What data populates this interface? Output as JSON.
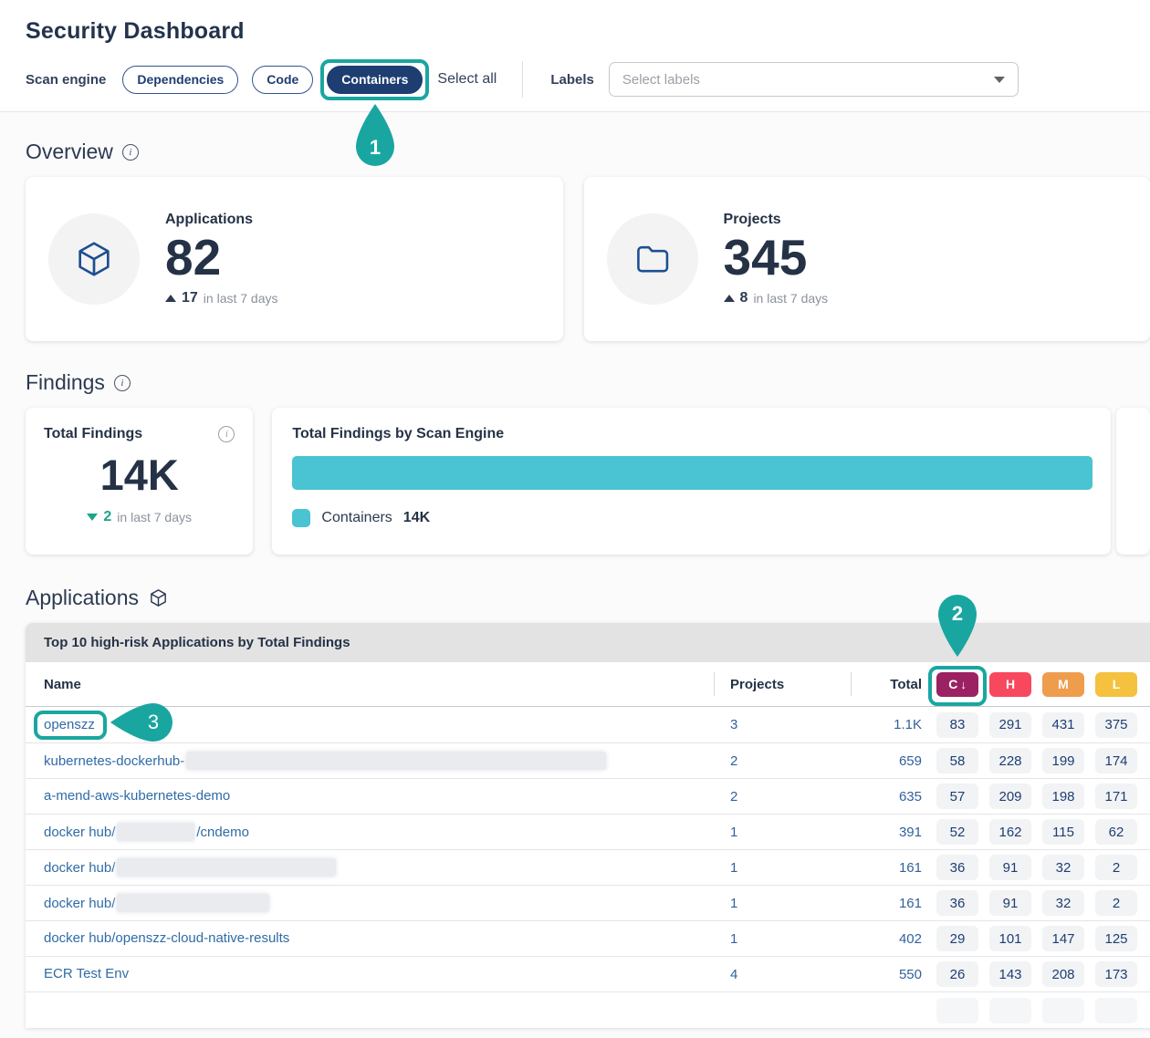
{
  "page": {
    "title": "Security Dashboard"
  },
  "filters": {
    "scan_engine_label": "Scan engine",
    "engines": [
      {
        "label": "Dependencies",
        "selected": false
      },
      {
        "label": "Code",
        "selected": false
      },
      {
        "label": "Containers",
        "selected": true
      }
    ],
    "select_all_label": "Select all",
    "labels_label": "Labels",
    "labels_placeholder": "Select labels"
  },
  "overview": {
    "heading": "Overview",
    "applications_card": {
      "title": "Applications",
      "value": "82",
      "delta": "17",
      "delta_direction": "up",
      "delta_suffix": "in last 7 days"
    },
    "projects_card": {
      "title": "Projects",
      "value": "345",
      "delta": "8",
      "delta_direction": "up",
      "delta_suffix": "in last 7 days"
    }
  },
  "findings": {
    "heading": "Findings",
    "total_card": {
      "title": "Total Findings",
      "value": "14K",
      "delta": "2",
      "delta_direction": "down",
      "delta_suffix": "in last 7 days"
    },
    "by_engine_card": {
      "title": "Total Findings by Scan Engine",
      "legend_label": "Containers",
      "legend_value": "14K"
    }
  },
  "chart_data": {
    "type": "bar",
    "orientation": "horizontal",
    "title": "Total Findings by Scan Engine",
    "categories": [
      "Containers"
    ],
    "values": [
      14000
    ],
    "value_labels": [
      "14K"
    ],
    "bar_color": "#4ac3d2",
    "legend_position": "bottom"
  },
  "applications": {
    "heading": "Applications",
    "table": {
      "title": "Top 10 high-risk Applications by Total Findings",
      "name_header": "Name",
      "projects_header": "Projects",
      "total_header": "Total",
      "severity_headers": [
        {
          "label": "C",
          "sorted": true,
          "sort_arrow": "↓",
          "color": "#9c2162"
        },
        {
          "label": "H",
          "sorted": false,
          "color": "#f8485e"
        },
        {
          "label": "M",
          "sorted": false,
          "color": "#ee9d4d"
        },
        {
          "label": "L",
          "sorted": false,
          "color": "#f4c23e"
        }
      ],
      "rows": [
        {
          "name_segments": [
            {
              "text": "openszz"
            }
          ],
          "annotated": true,
          "projects": "3",
          "total": "1.1K",
          "severities": [
            "83",
            "291",
            "431",
            "375"
          ]
        },
        {
          "name_segments": [
            {
              "text": "kubernetes-dockerhub-"
            },
            {
              "redacted_width": 460
            }
          ],
          "projects": "2",
          "total": "659",
          "severities": [
            "58",
            "228",
            "199",
            "174"
          ]
        },
        {
          "name_segments": [
            {
              "text": "a-mend-aws-kubernetes-demo"
            }
          ],
          "projects": "2",
          "total": "635",
          "severities": [
            "57",
            "209",
            "198",
            "171"
          ]
        },
        {
          "name_segments": [
            {
              "text": "docker hub/"
            },
            {
              "redacted_width": 85
            },
            {
              "text": "/cndemo"
            }
          ],
          "projects": "1",
          "total": "391",
          "severities": [
            "52",
            "162",
            "115",
            "62"
          ]
        },
        {
          "name_segments": [
            {
              "text": "docker hub/"
            },
            {
              "redacted_width": 240
            }
          ],
          "projects": "1",
          "total": "161",
          "severities": [
            "36",
            "91",
            "32",
            "2"
          ]
        },
        {
          "name_segments": [
            {
              "text": "docker hub/"
            },
            {
              "redacted_width": 167
            }
          ],
          "projects": "1",
          "total": "161",
          "severities": [
            "36",
            "91",
            "32",
            "2"
          ]
        },
        {
          "name_segments": [
            {
              "text": "docker hub/openszz-cloud-native-results"
            }
          ],
          "projects": "1",
          "total": "402",
          "severities": [
            "29",
            "101",
            "147",
            "125"
          ]
        },
        {
          "name_segments": [
            {
              "text": "ECR Test Env"
            }
          ],
          "projects": "4",
          "total": "550",
          "severities": [
            "26",
            "143",
            "208",
            "173"
          ]
        },
        {
          "partial": true,
          "name_segments": [],
          "projects": "",
          "total": "",
          "severities": [
            "",
            "",
            "",
            ""
          ]
        }
      ]
    }
  },
  "annotations": {
    "containers_pill": "1",
    "critical_column": "2",
    "openszz_row": "3"
  },
  "colors": {
    "accent_teal": "#19a6a1",
    "navy": "#253246",
    "selected_pill_navy": "#1e3e72",
    "link_blue": "#2f6ba7",
    "bar_teal": "#4ac3d2",
    "delta_green": "#17a689",
    "critical": "#9c2162",
    "high": "#f8485e",
    "medium": "#ee9d4d",
    "low": "#f4c23e"
  }
}
